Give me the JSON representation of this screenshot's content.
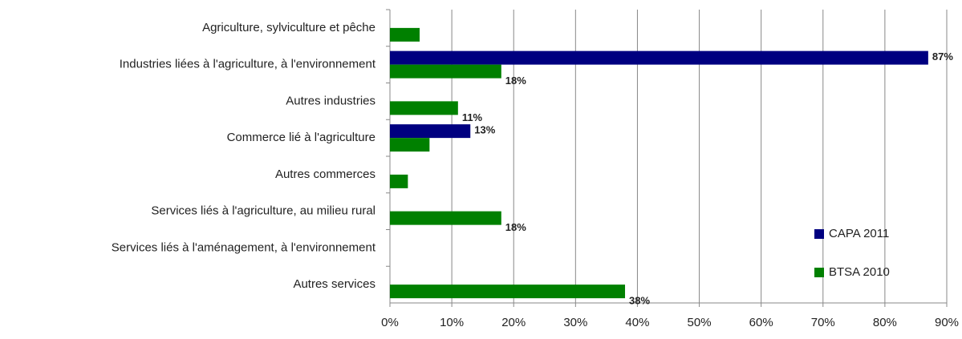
{
  "chart_data": {
    "type": "bar",
    "orientation": "horizontal",
    "categories": [
      "Agriculture, sylviculture et pêche",
      "Industries liées à l'agriculture, à l'environnement",
      "Autres industries",
      "Commerce lié à l'agriculture",
      "Autres commerces",
      "Services liés à l'agriculture, au milieu rural",
      "Services liés à l'aménagement, à l'environnement",
      "Autres services"
    ],
    "series": [
      {
        "name": "CAPA 2011",
        "color": "#000080",
        "values": [
          null,
          87,
          null,
          13,
          null,
          null,
          null,
          null
        ],
        "value_labels": [
          null,
          "87%",
          null,
          "13%",
          null,
          null,
          null,
          null
        ]
      },
      {
        "name": "BTSA 2010",
        "color": "#008000",
        "values": [
          4.8,
          18,
          11,
          6.4,
          2.9,
          18,
          null,
          38
        ],
        "value_labels": [
          null,
          "18%",
          "11%",
          null,
          null,
          "18%",
          null,
          "38%"
        ]
      }
    ],
    "xlim": [
      0,
      90
    ],
    "xticks": [
      {
        "value": 0,
        "label": "0%"
      },
      {
        "value": 10,
        "label": "10%"
      },
      {
        "value": 20,
        "label": "20%"
      },
      {
        "value": 30,
        "label": "30%"
      },
      {
        "value": 40,
        "label": "40%"
      },
      {
        "value": 50,
        "label": "50%"
      },
      {
        "value": 60,
        "label": "60%"
      },
      {
        "value": 70,
        "label": "70%"
      },
      {
        "value": 80,
        "label": "80%"
      },
      {
        "value": 90,
        "label": "90%"
      }
    ],
    "grid": true,
    "legend": "right"
  }
}
